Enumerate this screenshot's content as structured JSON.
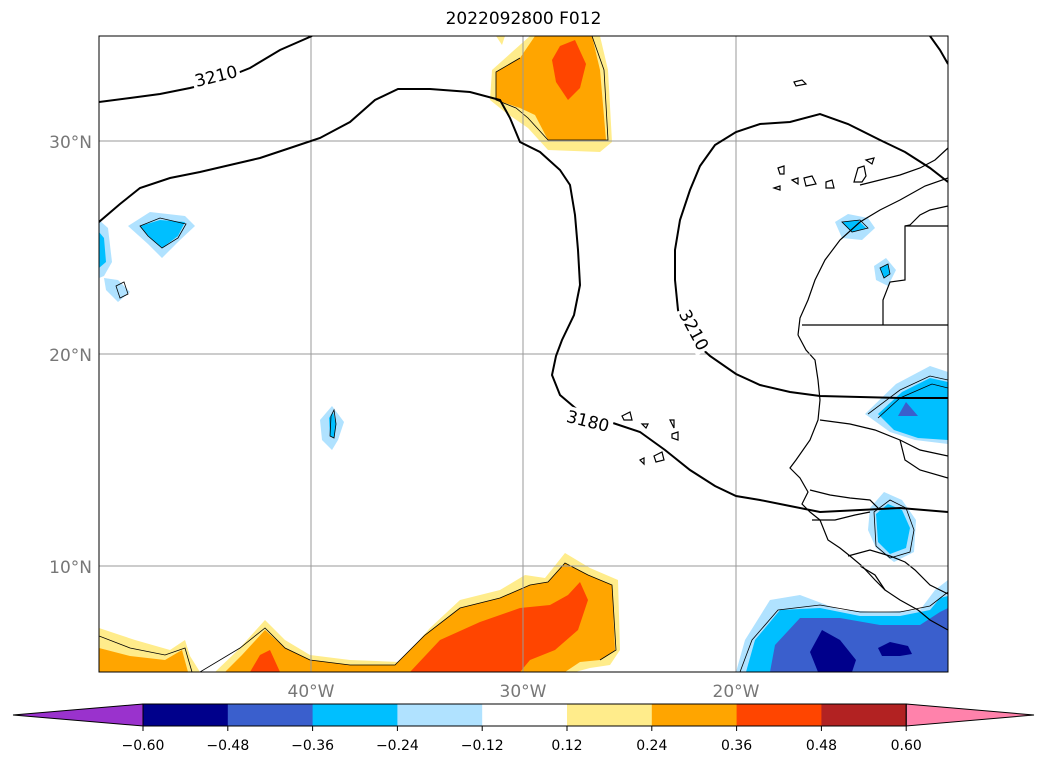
{
  "title": "2022092800 F012",
  "map": {
    "lat_labels": [
      "30°N",
      "20°N",
      "10°N"
    ],
    "lon_labels": [
      "40°W",
      "30°W",
      "20°W"
    ],
    "contour_labels": [
      "3210",
      "3210",
      "3180"
    ]
  },
  "colorbar": {
    "tick_labels": [
      "−0.60",
      "−0.48",
      "−0.36",
      "−0.24",
      "−0.12",
      "0.12",
      "0.24",
      "0.36",
      "0.48",
      "0.60"
    ],
    "colors": [
      "#9a32cd",
      "#00008b",
      "#3a5fcd",
      "#00bfff",
      "#b0e2ff",
      "#ffffff",
      "#ffec8b",
      "#ffa500",
      "#ff4500",
      "#b22222",
      "#ff82ab"
    ]
  },
  "colors": {
    "pos_light": "#ffec8b",
    "pos_mid": "#ffa500",
    "pos_strong": "#ff4500",
    "neg_light": "#b0e2ff",
    "neg_mid": "#00bfff",
    "neg_strong": "#3a5fcd",
    "neg_max": "#00008b"
  }
}
